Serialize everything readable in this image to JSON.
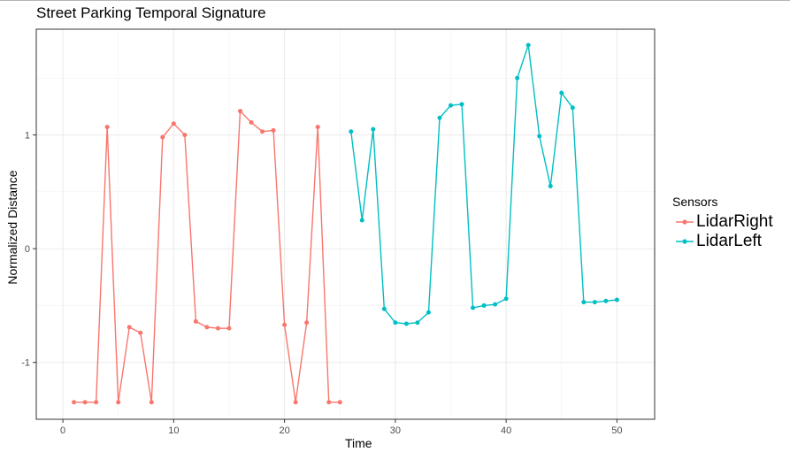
{
  "chart_data": {
    "type": "line",
    "title": "Street Parking Temporal Signature",
    "xlabel": "Time",
    "ylabel": "Normalized Distance",
    "xlim": [
      -2.4,
      53.4
    ],
    "ylim": [
      -1.5,
      1.93
    ],
    "x_ticks": [
      0,
      10,
      20,
      30,
      40,
      50
    ],
    "y_ticks": [
      -1,
      0,
      1
    ],
    "x_tick_labels": [
      "0",
      "10",
      "20",
      "30",
      "40",
      "50"
    ],
    "y_tick_labels": [
      "-1",
      "0",
      "1"
    ],
    "grid": true,
    "legend": {
      "title": "Sensors",
      "placement": "right"
    },
    "series": [
      {
        "name": "LidarRight",
        "color": "#F8766D",
        "x": [
          1,
          2,
          3,
          4,
          5,
          6,
          7,
          8,
          9,
          10,
          11,
          12,
          13,
          14,
          15,
          16,
          17,
          18,
          19,
          20,
          21,
          22,
          23,
          24,
          25
        ],
        "y": [
          -1.35,
          -1.35,
          -1.35,
          1.07,
          -1.35,
          -0.69,
          -0.74,
          -1.35,
          0.98,
          1.1,
          1.0,
          -0.64,
          -0.69,
          -0.7,
          -0.7,
          1.21,
          1.11,
          1.03,
          1.04,
          -0.67,
          -1.35,
          -0.65,
          1.07,
          -1.35,
          -1.35
        ]
      },
      {
        "name": "LidarLeft",
        "color": "#00BFC4",
        "x": [
          26,
          27,
          28,
          29,
          30,
          31,
          32,
          33,
          34,
          35,
          36,
          37,
          38,
          39,
          40,
          41,
          42,
          43,
          44,
          45,
          46,
          47,
          48,
          49,
          50
        ],
        "y": [
          1.03,
          0.25,
          1.05,
          -0.53,
          -0.65,
          -0.66,
          -0.65,
          -0.56,
          1.15,
          1.26,
          1.27,
          -0.52,
          -0.5,
          -0.49,
          -0.44,
          1.5,
          1.79,
          0.99,
          0.55,
          1.37,
          1.24,
          -0.47,
          -0.47,
          -0.46,
          -0.45
        ]
      }
    ]
  }
}
